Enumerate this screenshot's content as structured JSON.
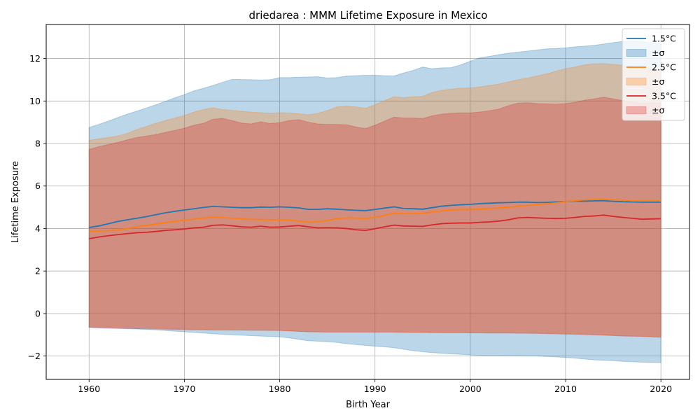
{
  "chart_data": {
    "type": "line",
    "title": "driedarea : MMM Lifetime Exposure in Mexico",
    "xlabel": "Birth Year",
    "ylabel": "Lifetime Exposure",
    "xlim": [
      1955.5,
      2023
    ],
    "ylim": [
      -3.1,
      13.6
    ],
    "xticks": [
      1960,
      1970,
      1980,
      1990,
      2000,
      2010,
      2020
    ],
    "yticks": [
      -2,
      0,
      2,
      4,
      6,
      8,
      10,
      12
    ],
    "grid": true,
    "legend_position": "top-right",
    "x": [
      1960,
      1961,
      1962,
      1963,
      1964,
      1965,
      1966,
      1967,
      1968,
      1969,
      1970,
      1971,
      1972,
      1973,
      1974,
      1975,
      1976,
      1977,
      1978,
      1979,
      1980,
      1981,
      1982,
      1983,
      1984,
      1985,
      1986,
      1987,
      1988,
      1989,
      1990,
      1991,
      1992,
      1993,
      1994,
      1995,
      1996,
      1997,
      1998,
      1999,
      2000,
      2001,
      2002,
      2003,
      2004,
      2005,
      2006,
      2007,
      2008,
      2009,
      2010,
      2011,
      2012,
      2013,
      2014,
      2015,
      2016,
      2017,
      2018,
      2019,
      2020
    ],
    "series": [
      {
        "name": "1.5°C",
        "band_label": "±σ",
        "color": "#1f77b4",
        "band_color": "#9ecae1",
        "mean": [
          4.05,
          4.12,
          4.22,
          4.33,
          4.41,
          4.48,
          4.56,
          4.65,
          4.74,
          4.81,
          4.87,
          4.93,
          4.99,
          5.04,
          5.02,
          5.0,
          4.98,
          4.98,
          5.01,
          5.0,
          5.02,
          5.0,
          4.97,
          4.9,
          4.9,
          4.93,
          4.91,
          4.88,
          4.86,
          4.84,
          4.9,
          4.96,
          5.02,
          4.94,
          4.93,
          4.91,
          4.98,
          5.05,
          5.09,
          5.12,
          5.14,
          5.17,
          5.19,
          5.21,
          5.22,
          5.24,
          5.24,
          5.22,
          5.23,
          5.25,
          5.27,
          5.29,
          5.29,
          5.3,
          5.31,
          5.28,
          5.26,
          5.25,
          5.24,
          5.24,
          5.24
        ],
        "upper": [
          8.75,
          8.9,
          9.05,
          9.22,
          9.38,
          9.52,
          9.67,
          9.82,
          9.98,
          10.15,
          10.3,
          10.48,
          10.6,
          10.73,
          10.88,
          11.02,
          11.01,
          11.0,
          10.99,
          11.0,
          11.1,
          11.1,
          11.12,
          11.13,
          11.14,
          11.08,
          11.1,
          11.17,
          11.19,
          11.21,
          11.21,
          11.19,
          11.18,
          11.32,
          11.44,
          11.6,
          11.52,
          11.56,
          11.57,
          11.7,
          11.87,
          12.03,
          12.1,
          12.18,
          12.25,
          12.3,
          12.35,
          12.4,
          12.45,
          12.47,
          12.5,
          12.55,
          12.58,
          12.62,
          12.68,
          12.75,
          12.8,
          12.82,
          12.8,
          12.75,
          12.7
        ],
        "lower": [
          -0.65,
          -0.67,
          -0.69,
          -0.7,
          -0.72,
          -0.73,
          -0.75,
          -0.77,
          -0.8,
          -0.83,
          -0.86,
          -0.89,
          -0.92,
          -0.95,
          -0.98,
          -1.0,
          -1.02,
          -1.04,
          -1.06,
          -1.08,
          -1.1,
          -1.15,
          -1.22,
          -1.28,
          -1.3,
          -1.32,
          -1.36,
          -1.42,
          -1.46,
          -1.5,
          -1.54,
          -1.57,
          -1.61,
          -1.68,
          -1.75,
          -1.8,
          -1.84,
          -1.87,
          -1.9,
          -1.92,
          -1.95,
          -1.97,
          -1.98,
          -1.98,
          -1.99,
          -1.99,
          -2.0,
          -2.0,
          -2.02,
          -2.04,
          -2.07,
          -2.1,
          -2.14,
          -2.18,
          -2.2,
          -2.22,
          -2.25,
          -2.27,
          -2.29,
          -2.3,
          -2.31
        ]
      },
      {
        "name": "2.5°C",
        "band_label": "±σ",
        "color": "#ff7f0e",
        "band_color": "#ffbb78",
        "mean": [
          3.85,
          3.88,
          3.9,
          3.92,
          4.0,
          4.08,
          4.14,
          4.21,
          4.27,
          4.33,
          4.39,
          4.44,
          4.49,
          4.53,
          4.51,
          4.48,
          4.45,
          4.43,
          4.42,
          4.41,
          4.41,
          4.39,
          4.35,
          4.3,
          4.31,
          4.38,
          4.46,
          4.5,
          4.49,
          4.47,
          4.52,
          4.62,
          4.72,
          4.7,
          4.7,
          4.72,
          4.77,
          4.83,
          4.87,
          4.89,
          4.89,
          4.91,
          4.94,
          4.97,
          5.0,
          5.04,
          5.08,
          5.12,
          5.16,
          5.21,
          5.27,
          5.31,
          5.35,
          5.37,
          5.38,
          5.36,
          5.33,
          5.3,
          5.3,
          5.3,
          5.3
        ],
        "upper": [
          8.15,
          8.22,
          8.28,
          8.35,
          8.48,
          8.66,
          8.8,
          8.95,
          9.08,
          9.2,
          9.32,
          9.48,
          9.6,
          9.68,
          9.6,
          9.56,
          9.52,
          9.48,
          9.45,
          9.43,
          9.45,
          9.44,
          9.4,
          9.35,
          9.42,
          9.55,
          9.72,
          9.76,
          9.72,
          9.66,
          9.82,
          10.02,
          10.2,
          10.16,
          10.2,
          10.22,
          10.4,
          10.5,
          10.56,
          10.6,
          10.62,
          10.66,
          10.73,
          10.8,
          10.9,
          11.0,
          11.08,
          11.18,
          11.28,
          11.4,
          11.52,
          11.6,
          11.7,
          11.75,
          11.76,
          11.72,
          11.68,
          11.62,
          11.58,
          11.55,
          11.52
        ],
        "lower": [
          -0.6,
          -0.61,
          -0.62,
          -0.63,
          -0.64,
          -0.65,
          -0.66,
          -0.68,
          -0.7,
          -0.72,
          -0.73,
          -0.74,
          -0.75,
          -0.75,
          -0.75,
          -0.76,
          -0.77,
          -0.78,
          -0.79,
          -0.8,
          -0.8,
          -0.82,
          -0.84,
          -0.86,
          -0.86,
          -0.86,
          -0.86,
          -0.86,
          -0.86,
          -0.86,
          -0.86,
          -0.86,
          -0.86,
          -0.87,
          -0.88,
          -0.88,
          -0.88,
          -0.89,
          -0.89,
          -0.89,
          -0.9,
          -0.9,
          -0.9,
          -0.9,
          -0.9,
          -0.9,
          -0.9,
          -0.91,
          -0.92,
          -0.93,
          -0.94,
          -0.95,
          -0.96,
          -0.98,
          -1.0,
          -1.02,
          -1.04,
          -1.05,
          -1.06,
          -1.08,
          -1.1
        ]
      },
      {
        "name": "3.5°C",
        "band_label": "±σ",
        "color": "#d62728",
        "band_color": "#ff9896",
        "mean": [
          3.52,
          3.6,
          3.66,
          3.71,
          3.76,
          3.8,
          3.82,
          3.86,
          3.91,
          3.94,
          3.98,
          4.03,
          4.06,
          4.15,
          4.17,
          4.13,
          4.08,
          4.06,
          4.11,
          4.06,
          4.07,
          4.11,
          4.14,
          4.08,
          4.03,
          4.04,
          4.03,
          4.0,
          3.94,
          3.91,
          3.99,
          4.08,
          4.16,
          4.12,
          4.11,
          4.1,
          4.17,
          4.23,
          4.25,
          4.26,
          4.26,
          4.29,
          4.31,
          4.35,
          4.41,
          4.5,
          4.52,
          4.5,
          4.48,
          4.47,
          4.48,
          4.52,
          4.57,
          4.59,
          4.63,
          4.57,
          4.52,
          4.48,
          4.44,
          4.45,
          4.46
        ],
        "upper": [
          7.72,
          7.85,
          7.95,
          8.05,
          8.17,
          8.28,
          8.35,
          8.42,
          8.52,
          8.62,
          8.72,
          8.86,
          8.95,
          9.14,
          9.18,
          9.08,
          8.96,
          8.92,
          9.02,
          8.94,
          8.98,
          9.08,
          9.12,
          9.0,
          8.92,
          8.9,
          8.9,
          8.88,
          8.78,
          8.7,
          8.86,
          9.05,
          9.24,
          9.2,
          9.2,
          9.18,
          9.3,
          9.38,
          9.42,
          9.44,
          9.44,
          9.48,
          9.54,
          9.62,
          9.78,
          9.9,
          9.92,
          9.88,
          9.86,
          9.85,
          9.88,
          9.94,
          10.04,
          10.1,
          10.18,
          10.1,
          10.02,
          9.96,
          9.9,
          9.92,
          9.92
        ],
        "lower": [
          -0.66,
          -0.67,
          -0.68,
          -0.69,
          -0.7,
          -0.71,
          -0.72,
          -0.73,
          -0.74,
          -0.75,
          -0.76,
          -0.77,
          -0.77,
          -0.78,
          -0.78,
          -0.78,
          -0.78,
          -0.79,
          -0.79,
          -0.79,
          -0.8,
          -0.82,
          -0.84,
          -0.86,
          -0.87,
          -0.88,
          -0.88,
          -0.88,
          -0.88,
          -0.88,
          -0.88,
          -0.88,
          -0.88,
          -0.89,
          -0.89,
          -0.89,
          -0.9,
          -0.9,
          -0.9,
          -0.9,
          -0.91,
          -0.91,
          -0.92,
          -0.92,
          -0.92,
          -0.93,
          -0.93,
          -0.94,
          -0.95,
          -0.96,
          -0.97,
          -0.98,
          -1.0,
          -1.01,
          -1.02,
          -1.04,
          -1.06,
          -1.07,
          -1.08,
          -1.1,
          -1.12
        ]
      }
    ]
  }
}
